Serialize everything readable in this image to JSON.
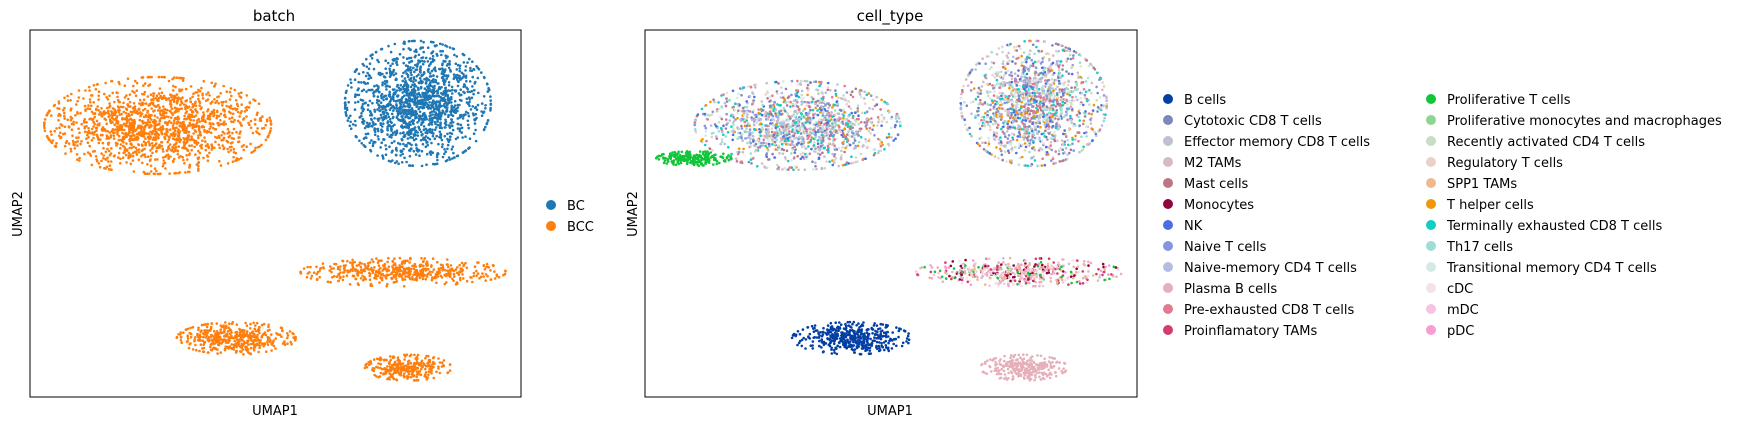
{
  "chart_data": [
    {
      "type": "scatter",
      "title": "batch",
      "xlabel": "UMAP1",
      "ylabel": "UMAP2",
      "legend_position": "right",
      "series": [
        {
          "name": "BC",
          "color": "#1f77b4"
        },
        {
          "name": "BCC",
          "color": "#ff7f0e"
        }
      ],
      "clusters": [
        {
          "series": "BC",
          "cx": 0.79,
          "cy": 0.8,
          "rx": 0.135,
          "ry": 0.155,
          "n": 1500
        },
        {
          "series": "BCC",
          "cx": 0.26,
          "cy": 0.74,
          "rx": 0.21,
          "ry": 0.12,
          "n": 1500
        },
        {
          "series": "BCC",
          "cx": 0.76,
          "cy": 0.34,
          "rx": 0.19,
          "ry": 0.035,
          "n": 500
        },
        {
          "series": "BCC",
          "cx": 0.42,
          "cy": 0.16,
          "rx": 0.11,
          "ry": 0.04,
          "n": 450
        },
        {
          "series": "BCC",
          "cx": 0.77,
          "cy": 0.08,
          "rx": 0.08,
          "ry": 0.032,
          "n": 300
        }
      ]
    },
    {
      "type": "scatter",
      "title": "cell_type",
      "xlabel": "UMAP1",
      "ylabel": "UMAP2",
      "legend_position": "right",
      "series": [
        {
          "name": "B cells",
          "color": "#023fa5"
        },
        {
          "name": "Cytotoxic CD8 T cells",
          "color": "#7d87b9"
        },
        {
          "name": "Effector memory CD8 T cells",
          "color": "#bec1d4"
        },
        {
          "name": "M2 TAMs",
          "color": "#d6bcc0"
        },
        {
          "name": "Mast cells",
          "color": "#bb7784"
        },
        {
          "name": "Monocytes",
          "color": "#8e063b"
        },
        {
          "name": "NK",
          "color": "#4a6fe3"
        },
        {
          "name": "Naive T cells",
          "color": "#8595e1"
        },
        {
          "name": "Naive-memory CD4 T cells",
          "color": "#b5bbe3"
        },
        {
          "name": "Plasma B cells",
          "color": "#e6afb9"
        },
        {
          "name": "Pre-exhausted CD8 T cells",
          "color": "#e07b91"
        },
        {
          "name": "Proinflamatory TAMs",
          "color": "#d33f6a"
        },
        {
          "name": "Proliferative T cells",
          "color": "#11c638"
        },
        {
          "name": "Proliferative monocytes and macrophages",
          "color": "#8dd593"
        },
        {
          "name": "Recently activated CD4 T cells",
          "color": "#c6dec7"
        },
        {
          "name": "Regulatory T cells",
          "color": "#ead3c6"
        },
        {
          "name": "SPP1 TAMs",
          "color": "#f0b98d"
        },
        {
          "name": "T helper cells",
          "color": "#ef9708"
        },
        {
          "name": "Terminally exhausted CD8 T cells",
          "color": "#0fcfc0"
        },
        {
          "name": "Th17 cells",
          "color": "#9cded6"
        },
        {
          "name": "Transitional memory CD4 T cells",
          "color": "#d5eae7"
        },
        {
          "name": "cDC",
          "color": "#f3e1eb"
        },
        {
          "name": "mDC",
          "color": "#f6c4e1"
        },
        {
          "name": "pDC",
          "color": "#f79cd4"
        }
      ],
      "clusters": [
        {
          "series": "mixed-T",
          "cx": 0.79,
          "cy": 0.8,
          "rx": 0.135,
          "ry": 0.155,
          "n": 1500
        },
        {
          "series": "mixed-T",
          "cx": 0.31,
          "cy": 0.74,
          "rx": 0.19,
          "ry": 0.11,
          "n": 1400
        },
        {
          "series": "Proliferative T cells",
          "cx": 0.1,
          "cy": 0.65,
          "rx": 0.07,
          "ry": 0.018,
          "n": 220
        },
        {
          "series": "mixed-myeloid",
          "cx": 0.76,
          "cy": 0.34,
          "rx": 0.19,
          "ry": 0.035,
          "n": 500
        },
        {
          "series": "B cells",
          "cx": 0.42,
          "cy": 0.16,
          "rx": 0.11,
          "ry": 0.04,
          "n": 450
        },
        {
          "series": "Plasma B cells",
          "cx": 0.77,
          "cy": 0.08,
          "rx": 0.08,
          "ry": 0.032,
          "n": 300
        }
      ]
    }
  ]
}
